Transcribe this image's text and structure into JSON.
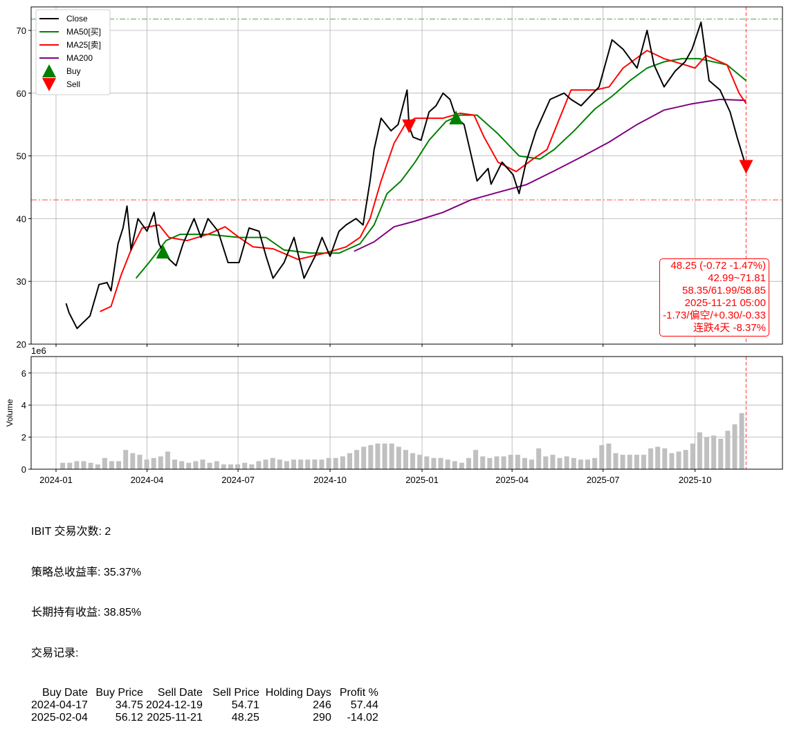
{
  "chart_data": [
    {
      "type": "line",
      "panel": "price",
      "ylim": [
        20,
        73
      ],
      "yticks": [
        20,
        30,
        40,
        50,
        60,
        70
      ],
      "xticks": [
        "2024-01",
        "2024-04",
        "2024-07",
        "2024-10",
        "2025-01",
        "2025-04",
        "2025-07",
        "2025-10"
      ],
      "grid": true,
      "legend_position": "top-left",
      "legend": [
        "Close",
        "MA50[买]",
        "MA25[卖]",
        "MA200",
        "Buy",
        "Sell"
      ],
      "series": [
        {
          "name": "Close",
          "color": "#000000",
          "points": [
            [
              "2024-01-11",
              26.5
            ],
            [
              "2024-01-14",
              25
            ],
            [
              "2024-01-22",
              22.5
            ],
            [
              "2024-02-04",
              24.5
            ],
            [
              "2024-02-13",
              29.5
            ],
            [
              "2024-02-21",
              29.8
            ],
            [
              "2024-02-25",
              28.5
            ],
            [
              "2024-03-03",
              36
            ],
            [
              "2024-03-08",
              38.5
            ],
            [
              "2024-03-12",
              42
            ],
            [
              "2024-03-16",
              35
            ],
            [
              "2024-03-23",
              40
            ],
            [
              "2024-04-01",
              38
            ],
            [
              "2024-04-08",
              41
            ],
            [
              "2024-04-13",
              36
            ],
            [
              "2024-04-17",
              34.75
            ],
            [
              "2024-04-20",
              34
            ],
            [
              "2024-04-30",
              32.5
            ],
            [
              "2024-05-07",
              36
            ],
            [
              "2024-05-18",
              40
            ],
            [
              "2024-05-25",
              37
            ],
            [
              "2024-06-01",
              40
            ],
            [
              "2024-06-11",
              38
            ],
            [
              "2024-06-21",
              33
            ],
            [
              "2024-07-02",
              33
            ],
            [
              "2024-07-12",
              38.5
            ],
            [
              "2024-07-22",
              38
            ],
            [
              "2024-07-29",
              34
            ],
            [
              "2024-08-05",
              30.5
            ],
            [
              "2024-08-16",
              33
            ],
            [
              "2024-08-26",
              37
            ],
            [
              "2024-09-05",
              30.5
            ],
            [
              "2024-09-16",
              34
            ],
            [
              "2024-09-23",
              37
            ],
            [
              "2024-10-01",
              34
            ],
            [
              "2024-10-10",
              38
            ],
            [
              "2024-10-17",
              39
            ],
            [
              "2024-10-27",
              40
            ],
            [
              "2024-11-03",
              39
            ],
            [
              "2024-11-10",
              46
            ],
            [
              "2024-11-14",
              51
            ],
            [
              "2024-11-21",
              56
            ],
            [
              "2024-12-01",
              54
            ],
            [
              "2024-12-08",
              55
            ],
            [
              "2024-12-17",
              60.5
            ],
            [
              "2024-12-19",
              54.71
            ],
            [
              "2024-12-23",
              53
            ],
            [
              "2024-12-31",
              52.5
            ],
            [
              "2025-01-08",
              57
            ],
            [
              "2025-01-15",
              58
            ],
            [
              "2025-01-22",
              60
            ],
            [
              "2025-01-29",
              59
            ],
            [
              "2025-02-04",
              56.12
            ],
            [
              "2025-02-12",
              55
            ],
            [
              "2025-02-25",
              46
            ],
            [
              "2025-03-08",
              48
            ],
            [
              "2025-03-11",
              45.5
            ],
            [
              "2025-03-22",
              49
            ],
            [
              "2025-04-02",
              47
            ],
            [
              "2025-04-08",
              44
            ],
            [
              "2025-04-15",
              49
            ],
            [
              "2025-04-25",
              54
            ],
            [
              "2025-05-09",
              59
            ],
            [
              "2025-05-23",
              60
            ],
            [
              "2025-05-30",
              59
            ],
            [
              "2025-06-09",
              58
            ],
            [
              "2025-06-27",
              61
            ],
            [
              "2025-07-10",
              68.5
            ],
            [
              "2025-07-21",
              67
            ],
            [
              "2025-08-04",
              64
            ],
            [
              "2025-08-14",
              70
            ],
            [
              "2025-08-21",
              64.5
            ],
            [
              "2025-08-31",
              61
            ],
            [
              "2025-09-11",
              63.5
            ],
            [
              "2025-09-21",
              65
            ],
            [
              "2025-09-28",
              67
            ],
            [
              "2025-10-07",
              71.3
            ],
            [
              "2025-10-15",
              62
            ],
            [
              "2025-10-26",
              60.5
            ],
            [
              "2025-11-05",
              57
            ],
            [
              "2025-11-12",
              53
            ],
            [
              "2025-11-21",
              48.25
            ]
          ]
        },
        {
          "name": "MA50[买]",
          "color": "#008000",
          "points": [
            [
              "2024-03-21",
              30.5
            ],
            [
              "2024-04-03",
              33
            ],
            [
              "2024-04-20",
              36.5
            ],
            [
              "2024-05-04",
              37.5
            ],
            [
              "2024-06-01",
              37.5
            ],
            [
              "2024-07-02",
              37
            ],
            [
              "2024-07-29",
              37
            ],
            [
              "2024-08-16",
              35
            ],
            [
              "2024-09-12",
              34.5
            ],
            [
              "2024-10-10",
              34.5
            ],
            [
              "2024-10-31",
              36
            ],
            [
              "2024-11-14",
              39
            ],
            [
              "2024-11-27",
              44
            ],
            [
              "2024-12-11",
              46
            ],
            [
              "2024-12-25",
              49
            ],
            [
              "2025-01-08",
              52.5
            ],
            [
              "2025-01-25",
              55.5
            ],
            [
              "2025-02-08",
              56.5
            ],
            [
              "2025-02-25",
              56.5
            ],
            [
              "2025-03-18",
              53.5
            ],
            [
              "2025-04-08",
              50
            ],
            [
              "2025-04-29",
              49.5
            ],
            [
              "2025-05-13",
              51
            ],
            [
              "2025-06-02",
              54
            ],
            [
              "2025-06-23",
              57.5
            ],
            [
              "2025-07-10",
              59.5
            ],
            [
              "2025-07-28",
              62
            ],
            [
              "2025-08-14",
              64
            ],
            [
              "2025-08-31",
              65
            ],
            [
              "2025-09-18",
              65.5
            ],
            [
              "2025-10-05",
              65.5
            ],
            [
              "2025-11-02",
              64.5
            ],
            [
              "2025-11-21",
              61.99
            ]
          ]
        },
        {
          "name": "MA25[卖]",
          "color": "#ff0000",
          "points": [
            [
              "2024-02-14",
              25.2
            ],
            [
              "2024-02-25",
              26
            ],
            [
              "2024-03-06",
              31
            ],
            [
              "2024-03-16",
              35
            ],
            [
              "2024-03-27",
              38.5
            ],
            [
              "2024-04-13",
              39
            ],
            [
              "2024-04-23",
              37
            ],
            [
              "2024-05-11",
              36.5
            ],
            [
              "2024-06-01",
              37.5
            ],
            [
              "2024-06-18",
              38.7
            ],
            [
              "2024-07-02",
              37
            ],
            [
              "2024-07-16",
              35.5
            ],
            [
              "2024-08-05",
              35.2
            ],
            [
              "2024-08-30",
              33.5
            ],
            [
              "2024-09-26",
              34.5
            ],
            [
              "2024-10-17",
              35.5
            ],
            [
              "2024-10-31",
              37
            ],
            [
              "2024-11-10",
              40
            ],
            [
              "2024-11-21",
              46
            ],
            [
              "2024-12-04",
              52
            ],
            [
              "2024-12-15",
              55
            ],
            [
              "2024-12-25",
              56
            ],
            [
              "2025-01-22",
              56
            ],
            [
              "2025-02-08",
              56.8
            ],
            [
              "2025-02-22",
              56.5
            ],
            [
              "2025-03-04",
              53
            ],
            [
              "2025-03-18",
              49
            ],
            [
              "2025-04-05",
              47.5
            ],
            [
              "2025-04-22",
              49.5
            ],
            [
              "2025-05-06",
              51
            ],
            [
              "2025-05-16",
              55
            ],
            [
              "2025-05-30",
              60.5
            ],
            [
              "2025-06-23",
              60.5
            ],
            [
              "2025-07-07",
              61
            ],
            [
              "2025-07-21",
              64
            ],
            [
              "2025-08-14",
              66.8
            ],
            [
              "2025-08-31",
              65.5
            ],
            [
              "2025-09-21",
              64.5
            ],
            [
              "2025-10-01",
              64
            ],
            [
              "2025-10-12",
              66
            ],
            [
              "2025-11-02",
              64.5
            ],
            [
              "2025-11-14",
              60
            ],
            [
              "2025-11-21",
              58.35
            ]
          ]
        },
        {
          "name": "MA200",
          "color": "#800080",
          "points": [
            [
              "2024-10-25",
              34.8
            ],
            [
              "2024-11-14",
              36.3
            ],
            [
              "2024-12-04",
              38.7
            ],
            [
              "2024-12-25",
              39.6
            ],
            [
              "2025-01-22",
              41
            ],
            [
              "2025-02-19",
              43
            ],
            [
              "2025-03-18",
              44.2
            ],
            [
              "2025-04-15",
              45.4
            ],
            [
              "2025-05-13",
              47.6
            ],
            [
              "2025-06-09",
              49.8
            ],
            [
              "2025-07-07",
              52.2
            ],
            [
              "2025-08-04",
              55
            ],
            [
              "2025-08-31",
              57.3
            ],
            [
              "2025-09-28",
              58.3
            ],
            [
              "2025-10-26",
              59
            ],
            [
              "2025-11-21",
              58.85
            ]
          ]
        }
      ],
      "buy_signals": [
        [
          "2024-04-17",
          34.75
        ],
        [
          "2025-02-04",
          56.12
        ]
      ],
      "sell_signals": [
        [
          "2024-12-19",
          54.71
        ],
        [
          "2025-11-21",
          48.25
        ]
      ],
      "hlines": [
        {
          "value": 71.81,
          "color": "#008000"
        },
        {
          "value": 42.99,
          "color": "#ff0000"
        }
      ],
      "vline": {
        "date": "2025-11-21",
        "color": "#ff0000"
      },
      "annotation": [
        "48.25 (-0.72 -1.47%)",
        "42.99~71.81",
        "58.35/61.99/58.85",
        "2025-11-21 05:00",
        "-1.73/偏空/+0.30/-0.33",
        "连跌4天 -8.37%"
      ]
    },
    {
      "type": "bar",
      "panel": "volume",
      "ylabel": "Volume",
      "offset_label": "1e6",
      "ylim": [
        0,
        7
      ],
      "yticks": [
        0,
        2,
        4,
        6
      ],
      "color": "#c0c0c0",
      "grid": true,
      "start_week": "2024-01-08",
      "weekly_values": [
        0.4,
        0.4,
        0.5,
        0.5,
        0.4,
        0.3,
        0.7,
        0.5,
        0.5,
        1.2,
        1.0,
        0.9,
        0.6,
        0.7,
        0.8,
        1.1,
        0.6,
        0.5,
        0.4,
        0.5,
        0.6,
        0.4,
        0.5,
        0.3,
        0.3,
        0.3,
        0.4,
        0.3,
        0.5,
        0.6,
        0.7,
        0.6,
        0.5,
        0.6,
        0.6,
        0.6,
        0.6,
        0.6,
        0.7,
        0.7,
        0.8,
        1.0,
        1.2,
        1.4,
        1.5,
        1.6,
        1.6,
        1.6,
        1.4,
        1.2,
        1.0,
        0.9,
        0.8,
        0.7,
        0.7,
        0.6,
        0.5,
        0.4,
        0.7,
        1.2,
        0.8,
        0.7,
        0.8,
        0.8,
        0.9,
        0.9,
        0.7,
        0.6,
        1.3,
        0.8,
        0.9,
        0.7,
        0.8,
        0.7,
        0.6,
        0.6,
        0.7,
        1.5,
        1.6,
        1.0,
        0.9,
        0.9,
        0.9,
        0.9,
        1.3,
        1.4,
        1.3,
        1.0,
        1.1,
        1.2,
        1.6,
        2.3,
        2.0,
        2.1,
        1.9,
        2.4,
        2.8,
        3.5
      ]
    }
  ],
  "summary": {
    "ticker_trades": "IBIT 交易次数: 2",
    "strategy_return": "策略总收益率: 35.37%",
    "hold_return": "长期持有收益: 38.85%",
    "records_title": "交易记录:",
    "columns": [
      "Buy Date",
      "Buy Price",
      "Sell Date",
      "Sell Price",
      "Holding Days",
      "Profit %"
    ],
    "rows": [
      [
        "2024-04-17",
        "34.75",
        "2024-12-19",
        "54.71",
        "246",
        "57.44"
      ],
      [
        "2025-02-04",
        "56.12",
        "2025-11-21",
        "48.25",
        "290",
        "-14.02"
      ]
    ]
  }
}
